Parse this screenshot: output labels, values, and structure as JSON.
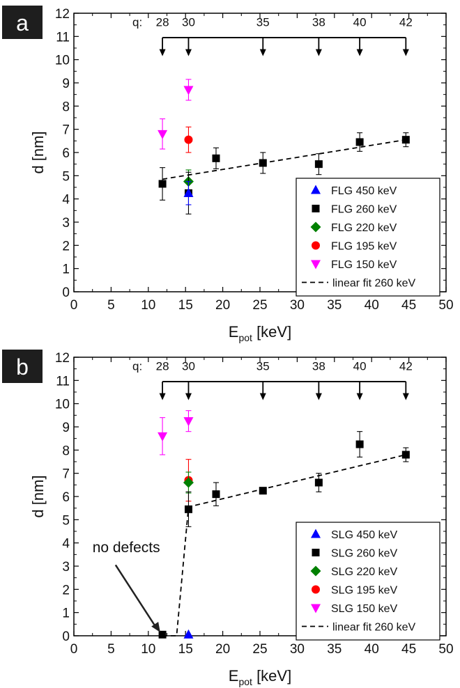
{
  "chart_data": [
    {
      "type": "scatter",
      "panel_label": "a",
      "xlabel_main": "E",
      "xlabel_sub": "pot",
      "xlabel_unit": " [keV]",
      "ylabel": "d [nm]",
      "xlim": [
        0,
        50
      ],
      "ylim": [
        0,
        12
      ],
      "xticks": [
        0,
        5,
        10,
        15,
        20,
        25,
        30,
        35,
        40,
        45,
        50
      ],
      "yticks": [
        0,
        1,
        2,
        3,
        4,
        5,
        6,
        7,
        8,
        9,
        10,
        11,
        12
      ],
      "charge_axis": {
        "label": "q:",
        "ticks": [
          {
            "q": "28",
            "x": 11.9
          },
          {
            "q": "30",
            "x": 15.4
          },
          {
            "q": "35",
            "x": 25.4
          },
          {
            "q": "38",
            "x": 32.9
          },
          {
            "q": "40",
            "x": 38.4
          },
          {
            "q": "42",
            "x": 44.6
          }
        ]
      },
      "legend_placement": "lower-right",
      "series": [
        {
          "name": "FLG 450 keV",
          "marker": "triangle-up",
          "color": "#0000ff",
          "points": [
            {
              "x": 15.4,
              "y": 4.25,
              "err": 0.5
            }
          ]
        },
        {
          "name": "FLG 260 keV",
          "marker": "square",
          "color": "#000000",
          "points": [
            {
              "x": 11.9,
              "y": 4.65,
              "err": 0.7
            },
            {
              "x": 15.4,
              "y": 4.25,
              "err": 0.9
            },
            {
              "x": 19.1,
              "y": 5.75,
              "err": 0.45
            },
            {
              "x": 25.4,
              "y": 5.55,
              "err": 0.45
            },
            {
              "x": 32.9,
              "y": 5.5,
              "err": 0.45
            },
            {
              "x": 38.4,
              "y": 6.45,
              "err": 0.4
            },
            {
              "x": 44.6,
              "y": 6.55,
              "err": 0.3
            }
          ]
        },
        {
          "name": "FLG 220 keV",
          "marker": "diamond",
          "color": "#008000",
          "points": [
            {
              "x": 15.4,
              "y": 4.75,
              "err": 0.5
            }
          ]
        },
        {
          "name": "FLG 195 keV",
          "marker": "circle",
          "color": "#ff0000",
          "points": [
            {
              "x": 15.4,
              "y": 6.55,
              "err": 0.55
            }
          ]
        },
        {
          "name": "FLG 150 keV",
          "marker": "triangle-down",
          "color": "#ff00ff",
          "points": [
            {
              "x": 11.9,
              "y": 6.8,
              "err": 0.65
            },
            {
              "x": 15.4,
              "y": 8.7,
              "err": 0.45
            }
          ]
        }
      ],
      "fit": {
        "name": "linear fit 260 keV",
        "style": "dashed",
        "color": "#000000",
        "points": [
          {
            "x": 11.9,
            "y": 4.85
          },
          {
            "x": 44.6,
            "y": 6.55
          }
        ]
      }
    },
    {
      "type": "scatter",
      "panel_label": "b",
      "xlabel_main": "E",
      "xlabel_sub": "pot",
      "xlabel_unit": " [keV]",
      "ylabel": "d [nm]",
      "xlim": [
        0,
        50
      ],
      "ylim": [
        0,
        12
      ],
      "xticks": [
        0,
        5,
        10,
        15,
        20,
        25,
        30,
        35,
        40,
        45,
        50
      ],
      "yticks": [
        0,
        1,
        2,
        3,
        4,
        5,
        6,
        7,
        8,
        9,
        10,
        11,
        12
      ],
      "charge_axis": {
        "label": "q:",
        "ticks": [
          {
            "q": "28",
            "x": 11.9
          },
          {
            "q": "30",
            "x": 15.4
          },
          {
            "q": "35",
            "x": 25.4
          },
          {
            "q": "38",
            "x": 32.9
          },
          {
            "q": "40",
            "x": 38.4
          },
          {
            "q": "42",
            "x": 44.6
          }
        ]
      },
      "legend_placement": "lower-right",
      "annotation": {
        "text": "no defects",
        "x": 2.5,
        "y": 3.6,
        "arrow_to": {
          "x": 11.6,
          "y": 0.15
        }
      },
      "series": [
        {
          "name": "SLG 450 keV",
          "marker": "triangle-up",
          "color": "#0000ff",
          "points": [
            {
              "x": 15.4,
              "y": 0.05,
              "err": 0
            }
          ]
        },
        {
          "name": "SLG 260 keV",
          "marker": "square",
          "color": "#000000",
          "points": [
            {
              "x": 11.9,
              "y": 0.05,
              "err": 0
            },
            {
              "x": 15.4,
              "y": 5.45,
              "err": 0.75
            },
            {
              "x": 19.1,
              "y": 6.1,
              "err": 0.5
            },
            {
              "x": 25.4,
              "y": 6.25,
              "err": 0.1
            },
            {
              "x": 32.9,
              "y": 6.6,
              "err": 0.4
            },
            {
              "x": 38.4,
              "y": 8.25,
              "err": 0.55
            },
            {
              "x": 44.6,
              "y": 7.8,
              "err": 0.3
            }
          ]
        },
        {
          "name": "SLG 220 keV",
          "marker": "diamond",
          "color": "#008000",
          "points": [
            {
              "x": 15.4,
              "y": 6.6,
              "err": 0.45
            }
          ]
        },
        {
          "name": "SLG 195 keV",
          "marker": "circle",
          "color": "#ff0000",
          "points": [
            {
              "x": 15.4,
              "y": 6.7,
              "err": 0.9
            }
          ]
        },
        {
          "name": "SLG 150 keV",
          "marker": "triangle-down",
          "color": "#ff00ff",
          "points": [
            {
              "x": 11.9,
              "y": 8.6,
              "err": 0.8
            },
            {
              "x": 15.4,
              "y": 9.25,
              "err": 0.45
            }
          ]
        }
      ],
      "fit": {
        "name": "linear fit 260 keV",
        "style": "dashed",
        "color": "#000000",
        "points": [
          {
            "x": 11.9,
            "y": 0
          },
          {
            "x": 13.8,
            "y": 0
          },
          {
            "x": 15.4,
            "y": 5.55
          },
          {
            "x": 44.6,
            "y": 7.8
          }
        ]
      }
    }
  ]
}
